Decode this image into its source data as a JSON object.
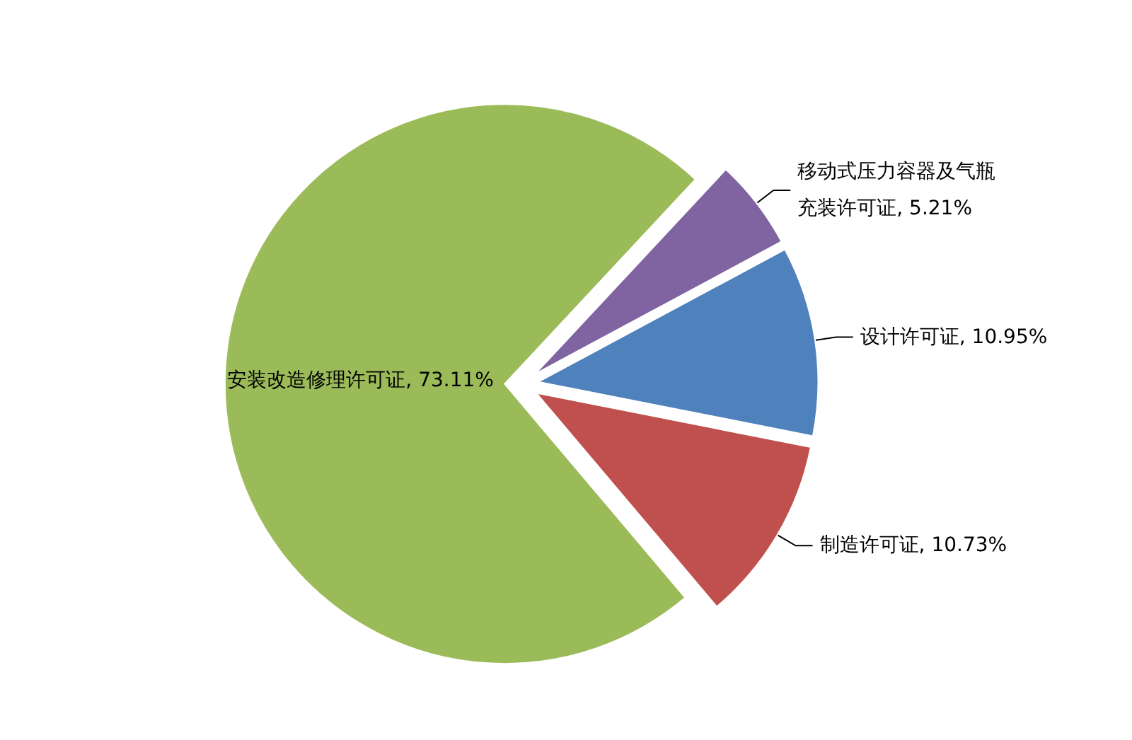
{
  "chart_data": {
    "type": "pie",
    "categories": [
      "移动式压力容器及气瓶充装许可证",
      "设计许可证",
      "制造许可证",
      "安装改造修理许可证"
    ],
    "values": [
      5.21,
      10.95,
      10.73,
      73.11
    ],
    "value_labels": [
      "5.21%",
      "10.95%",
      "10.73%",
      "73.11%"
    ],
    "colors": [
      "#8064a2",
      "#4f81bd",
      "#c0504d",
      "#9bbb59"
    ],
    "legend": false
  }
}
